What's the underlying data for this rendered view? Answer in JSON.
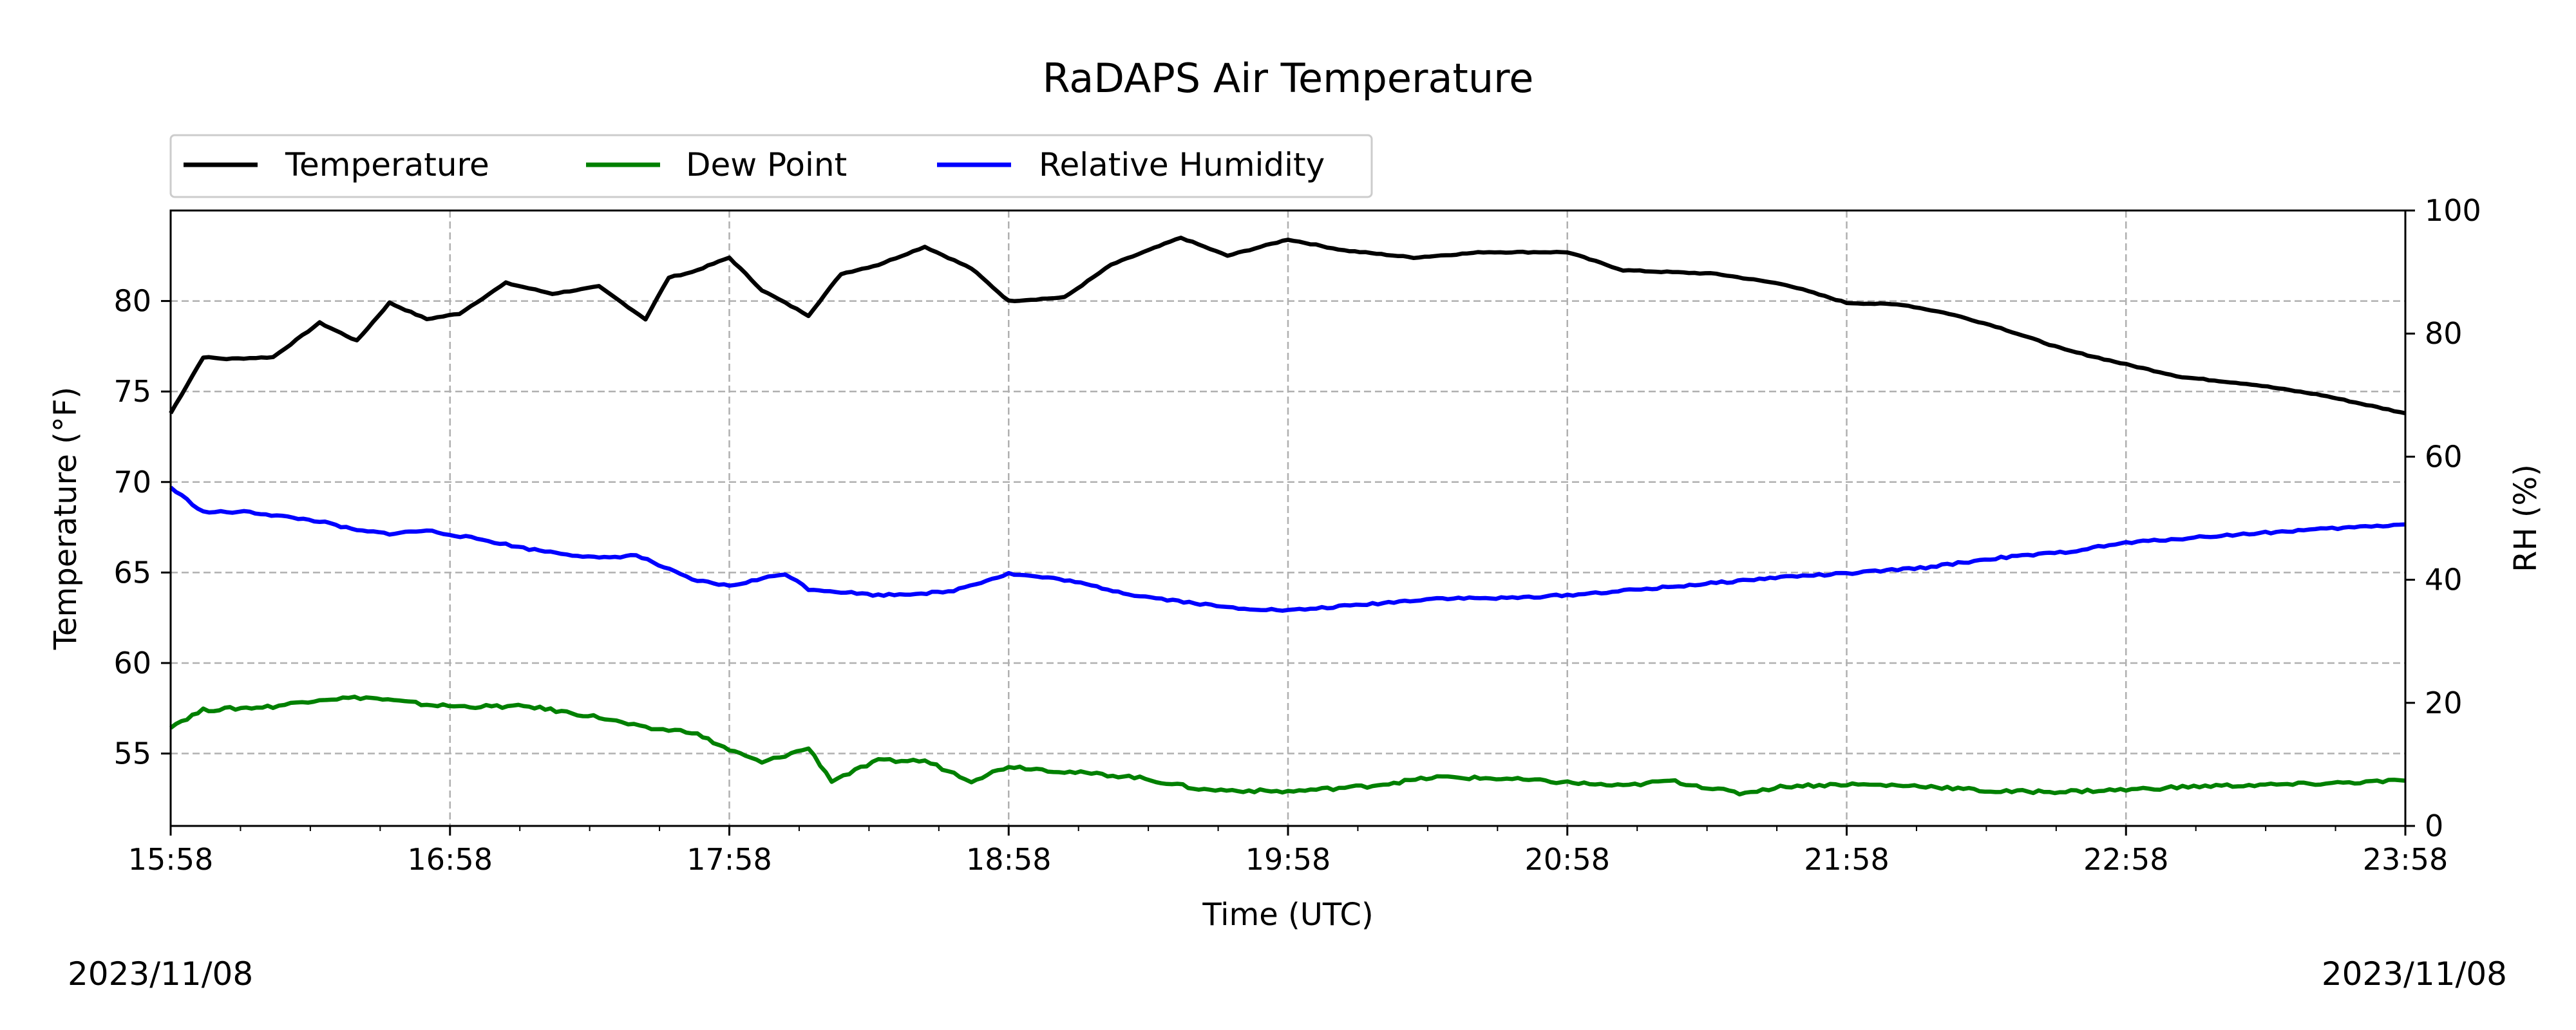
{
  "chart_data": {
    "type": "line",
    "title": "RaDAPS Air Temperature",
    "xlabel": "Time (UTC)",
    "ylabel": "Temperature (°F)",
    "ylabel_right": "RH (%)",
    "x_ticks": [
      "15:58",
      "16:58",
      "17:58",
      "18:58",
      "19:58",
      "20:58",
      "21:58",
      "22:58",
      "23:58"
    ],
    "xlim": [
      "15:58",
      "23:58"
    ],
    "ylim": [
      51,
      85
    ],
    "ylim_right": [
      0,
      100
    ],
    "y_ticks": [
      55,
      60,
      65,
      70,
      75,
      80
    ],
    "y_ticks_right": [
      0,
      20,
      40,
      60,
      80,
      100
    ],
    "grid": true,
    "legend_position": "top-left",
    "date_left": "2023/11/08",
    "date_right": "2023/11/08",
    "series": [
      {
        "name": "Temperature",
        "color": "#000000",
        "axis": "left",
        "x": [
          "15:58",
          "16:05",
          "16:10",
          "16:20",
          "16:30",
          "16:38",
          "16:45",
          "16:53",
          "17:00",
          "17:10",
          "17:20",
          "17:30",
          "17:40",
          "17:45",
          "17:50",
          "17:58",
          "18:05",
          "18:15",
          "18:22",
          "18:30",
          "18:40",
          "18:50",
          "18:58",
          "19:10",
          "19:20",
          "19:35",
          "19:45",
          "19:58",
          "20:10",
          "20:25",
          "20:40",
          "20:58",
          "21:10",
          "21:30",
          "21:45",
          "21:58",
          "22:10",
          "22:20",
          "22:30",
          "22:45",
          "22:58",
          "23:10",
          "23:25",
          "23:40",
          "23:58"
        ],
        "y": [
          73.8,
          76.9,
          76.8,
          76.9,
          78.8,
          77.8,
          79.9,
          79.0,
          79.3,
          81.0,
          80.4,
          80.8,
          79.0,
          81.3,
          81.6,
          82.4,
          80.6,
          79.2,
          81.5,
          82.0,
          83.0,
          81.8,
          80.0,
          80.2,
          82.0,
          83.5,
          82.5,
          83.4,
          82.8,
          82.4,
          82.7,
          82.7,
          81.7,
          81.5,
          80.9,
          79.9,
          79.8,
          79.3,
          78.6,
          77.3,
          76.5,
          75.8,
          75.4,
          74.8,
          73.8
        ]
      },
      {
        "name": "Dew Point",
        "color": "#008000",
        "axis": "left",
        "x": [
          "15:58",
          "16:05",
          "16:20",
          "16:30",
          "16:40",
          "16:53",
          "17:00",
          "17:15",
          "17:30",
          "17:40",
          "17:50",
          "17:58",
          "18:05",
          "18:15",
          "18:20",
          "18:30",
          "18:40",
          "18:50",
          "18:58",
          "19:10",
          "19:25",
          "19:40",
          "19:58",
          "20:15",
          "20:30",
          "20:45",
          "20:58",
          "21:10",
          "21:20",
          "21:35",
          "21:45",
          "21:58",
          "22:15",
          "22:30",
          "22:45",
          "22:58",
          "23:15",
          "23:35",
          "23:58"
        ],
        "y": [
          56.5,
          57.4,
          57.6,
          58.0,
          58.1,
          57.7,
          57.6,
          57.6,
          57.0,
          56.4,
          56.2,
          55.2,
          54.5,
          55.3,
          53.5,
          54.6,
          54.6,
          53.5,
          54.3,
          54.0,
          53.7,
          53.0,
          52.9,
          53.2,
          53.7,
          53.6,
          53.4,
          53.2,
          53.5,
          52.8,
          53.2,
          53.3,
          53.2,
          52.9,
          52.9,
          53.0,
          53.2,
          53.3,
          53.5
        ]
      },
      {
        "name": "Relative Humidity",
        "color": "#0000ff",
        "axis": "right",
        "x": [
          "15:58",
          "16:05",
          "16:15",
          "16:30",
          "16:38",
          "16:45",
          "16:53",
          "17:05",
          "17:15",
          "17:30",
          "17:38",
          "17:50",
          "17:58",
          "18:10",
          "18:15",
          "18:30",
          "18:45",
          "18:58",
          "19:10",
          "19:25",
          "19:45",
          "19:58",
          "20:15",
          "20:30",
          "20:45",
          "20:58",
          "21:15",
          "21:30",
          "21:45",
          "21:58",
          "22:15",
          "22:30",
          "22:45",
          "22:58",
          "23:15",
          "23:35",
          "23:58"
        ],
        "y": [
          55,
          51,
          51,
          49.5,
          48,
          47.5,
          48,
          46.5,
          45,
          43.5,
          44,
          40,
          39,
          41,
          38.5,
          37.5,
          38,
          41,
          40,
          37.5,
          35.5,
          35,
          36,
          37,
          37,
          37.5,
          38.5,
          39.5,
          40.5,
          41,
          42,
          43.5,
          44.5,
          46,
          47,
          48,
          49
        ]
      }
    ]
  }
}
